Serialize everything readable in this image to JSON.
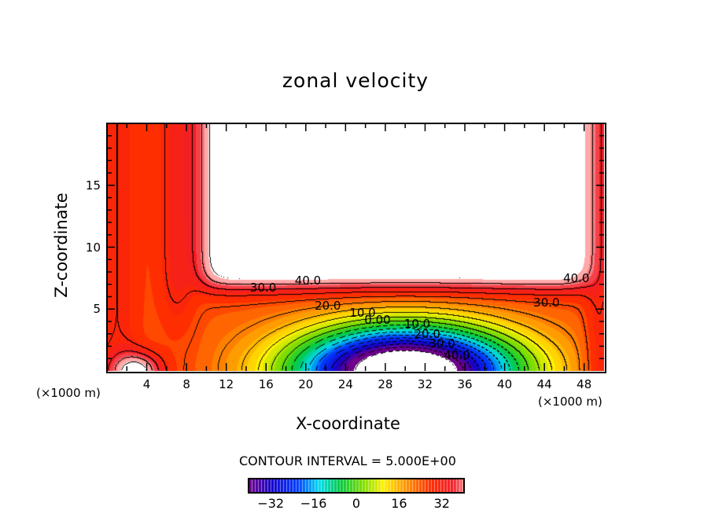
{
  "chart_data": {
    "type": "contour",
    "title": "zonal velocity",
    "xlabel": "X-coordinate",
    "ylabel": "Z-coordinate",
    "x_unit": "(×1000 m)",
    "z_unit": "(×1000 m)",
    "xlim": [
      0,
      50
    ],
    "ylim": [
      0,
      20
    ],
    "xticks": [
      "4",
      "8",
      "12",
      "16",
      "20",
      "24",
      "28",
      "32",
      "36",
      "40",
      "44",
      "48"
    ],
    "xtick_values": [
      4,
      8,
      12,
      16,
      20,
      24,
      28,
      32,
      36,
      40,
      44,
      48
    ],
    "yticks": [
      "5",
      "10",
      "15"
    ],
    "ytick_values": [
      5,
      10,
      15
    ],
    "contour_interval_text": "CONTOUR INTERVAL = 5.000E+00",
    "contour_interval": 5,
    "contour_labels": [
      {
        "text": "40.0",
        "x": 20,
        "z": 7.3
      },
      {
        "text": "30.0",
        "x": 15.5,
        "z": 6.7
      },
      {
        "text": "20.0",
        "x": 22,
        "z": 5.3
      },
      {
        "text": "10.0",
        "x": 25.5,
        "z": 4.7
      },
      {
        "text": "0.00",
        "x": 27,
        "z": 4.1
      },
      {
        "text": "10.0",
        "x": 31,
        "z": 3.8
      },
      {
        "text": "20.0",
        "x": 32,
        "z": 3.0
      },
      {
        "text": "30.0",
        "x": 33.5,
        "z": 2.2
      },
      {
        "text": "40.0",
        "x": 35,
        "z": 1.3
      },
      {
        "text": "40.0",
        "x": 47,
        "z": 7.5
      },
      {
        "text": "30.0",
        "x": 44,
        "z": 5.5
      }
    ],
    "colorbar": {
      "range": [
        -40,
        40
      ],
      "ticks": [
        "−32",
        "−16",
        "0",
        "16",
        "32"
      ],
      "tick_values": [
        -32,
        -16,
        0,
        16,
        32
      ]
    }
  }
}
